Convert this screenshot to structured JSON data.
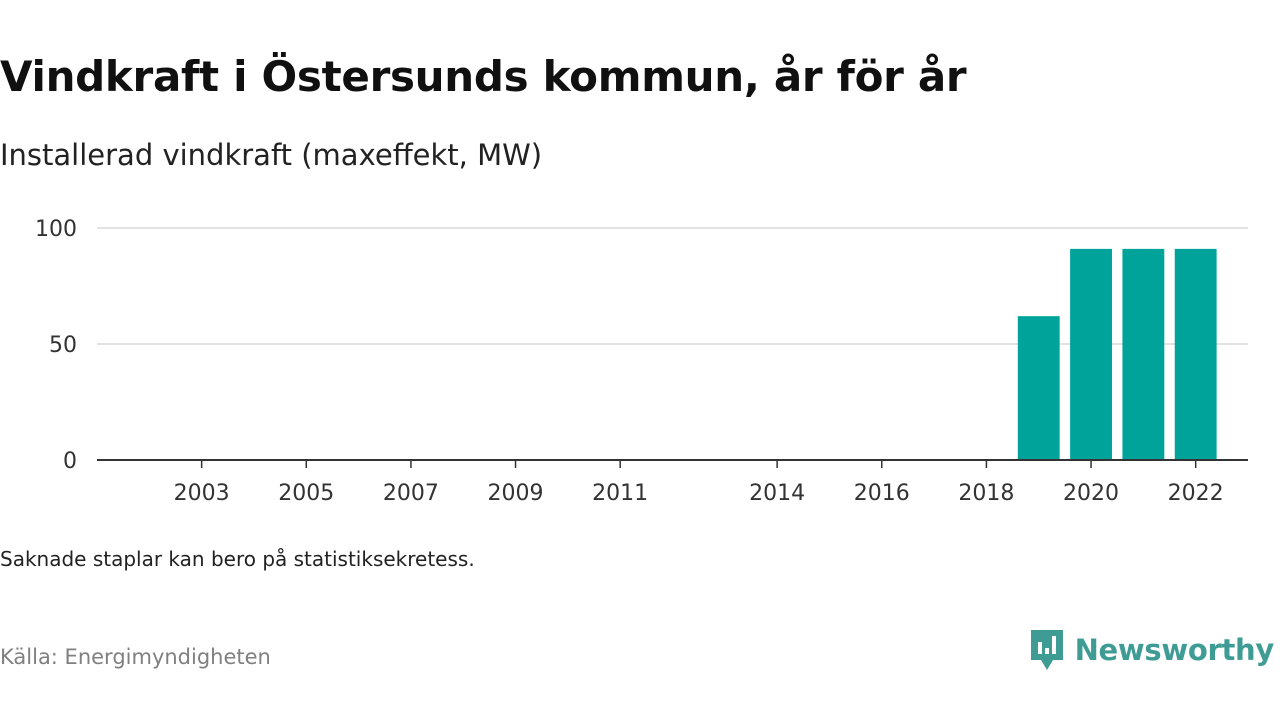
{
  "title": "Vindkraft i Östersunds kommun, år för år",
  "subtitle": "Installerad vindkraft (maxeffekt, MW)",
  "note": "Saknade staplar kan bero på statistiksekretess.",
  "source": "Källa: Energimyndigheten",
  "brand": {
    "name": "Newsworthy",
    "color": "#3f9c94",
    "icon": "newsworthy-logo-icon"
  },
  "chart_data": {
    "type": "bar",
    "x": [
      2019,
      2020,
      2021,
      2022
    ],
    "values": [
      62,
      91,
      91,
      91
    ],
    "xlim": [
      2001,
      2023
    ],
    "ylim": [
      0,
      100
    ],
    "x_ticks": [
      2003,
      2005,
      2007,
      2009,
      2011,
      2014,
      2016,
      2018,
      2020,
      2022
    ],
    "y_ticks": [
      0,
      50,
      100
    ],
    "grid": true,
    "bar_color": "#00a39a",
    "xlabel": "",
    "ylabel": ""
  }
}
